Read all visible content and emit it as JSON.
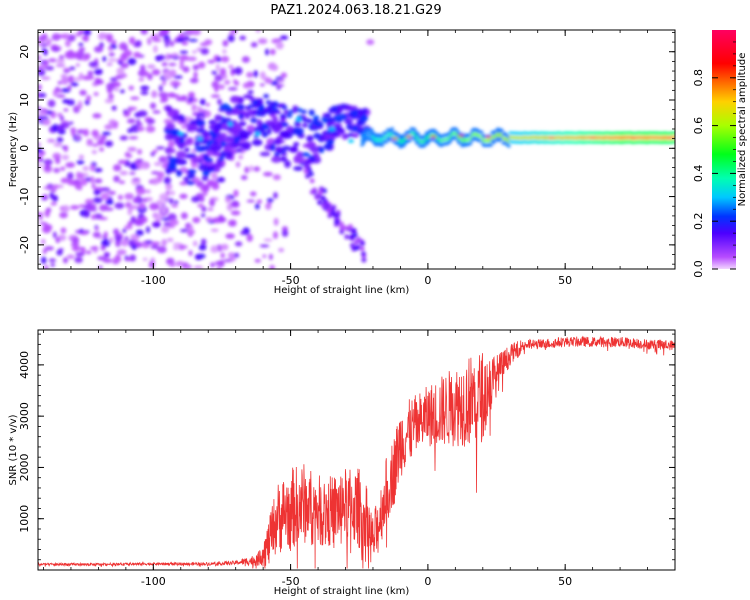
{
  "figure": {
    "title": "PAZ1.2024.063.18.21.G29"
  },
  "chart_data": [
    {
      "type": "heatmap",
      "xlabel": "Height of straight line (km)",
      "ylabel": "Frequency (Hz)",
      "xlim": [
        -142,
        90
      ],
      "ylim": [
        -25,
        24.5
      ],
      "x_ticks": [
        -100,
        -50,
        0,
        50
      ],
      "y_ticks": [
        -20,
        -10,
        0,
        10,
        20
      ],
      "x_tick_labels": [
        "-100",
        "-50",
        "0",
        "50"
      ],
      "y_tick_labels": [
        "-20",
        "-10",
        "0",
        "10",
        "20"
      ],
      "colorbar": {
        "label": "Normalized spectral amplitude",
        "range": [
          0,
          1
        ],
        "ticks": [
          0.0,
          0.2,
          0.4,
          0.6,
          0.8
        ],
        "tick_labels": [
          "0.0",
          "0.2",
          "0.4",
          "0.6",
          "0.8"
        ],
        "colormap": "gist_rainbow"
      },
      "structure": [
        {
          "feature": "scattered noise",
          "x_range": [
            -142,
            -55
          ],
          "freq_range": [
            -25,
            24.5
          ],
          "amplitude": "low"
        },
        {
          "feature": "converging signal",
          "x_range": [
            -95,
            -22
          ],
          "freq_range": [
            -2,
            11
          ],
          "amplitude": "medium"
        },
        {
          "feature": "descending branch",
          "x_range": [
            -45,
            -25
          ],
          "freq_range": [
            -22,
            -5
          ],
          "amplitude": "low"
        },
        {
          "feature": "stable carrier band",
          "x_range": [
            -22,
            90
          ],
          "freq_center": 2.2,
          "amplitude": "high"
        }
      ]
    },
    {
      "type": "line",
      "xlabel": "Height of straight line (km)",
      "ylabel": "SNR (10 * v/v)",
      "xlim": [
        -142,
        90
      ],
      "ylim": [
        0,
        4680
      ],
      "x_ticks": [
        -100,
        -50,
        0,
        50
      ],
      "y_ticks": [
        1000,
        2000,
        3000,
        4000
      ],
      "x_tick_labels": [
        "-100",
        "-50",
        "0",
        "50"
      ],
      "y_tick_labels": [
        "1000",
        "2000",
        "3000",
        "4000"
      ],
      "color": "#ee3333",
      "series": [
        {
          "x": [
            -142,
            -120,
            -100,
            -80,
            -70,
            -62,
            -58,
            -55,
            -50,
            -45,
            -40,
            -35,
            -30,
            -25,
            -22,
            -20,
            -18,
            -15,
            -12,
            -10,
            -5,
            0,
            5,
            10,
            15,
            20,
            25,
            30,
            35,
            40,
            50,
            60,
            70,
            80,
            90
          ],
          "values": [
            110,
            110,
            120,
            120,
            140,
            200,
            500,
            1000,
            1200,
            1300,
            1150,
            1150,
            1300,
            1200,
            900,
            550,
            900,
            1600,
            2000,
            2500,
            2800,
            3000,
            3100,
            3200,
            3300,
            3400,
            3800,
            4200,
            4400,
            4400,
            4450,
            4450,
            4450,
            4400,
            4380
          ],
          "noise": [
            25,
            25,
            25,
            30,
            40,
            120,
            450,
            700,
            800,
            800,
            700,
            700,
            700,
            800,
            700,
            500,
            600,
            650,
            700,
            700,
            600,
            600,
            700,
            800,
            900,
            900,
            400,
            200,
            120,
            100,
            100,
            100,
            100,
            100,
            100
          ]
        }
      ]
    }
  ]
}
